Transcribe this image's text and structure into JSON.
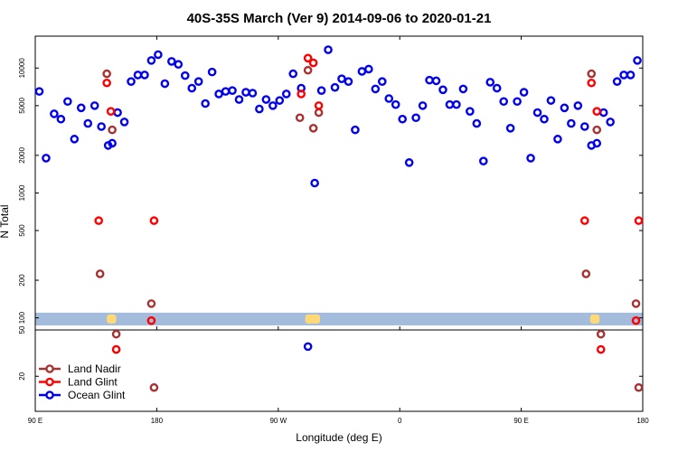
{
  "chart_data": {
    "type": "scatter",
    "title": "40S-35S March (Ver 9)   2014-09-06 to 2020-01-21",
    "xlabel": "Longitude (deg E)",
    "ylabel": "N Total",
    "y_scale": "log",
    "upper_panel_ylim": [
      80,
      18000
    ],
    "lower_panel_ylim": [
      10,
      50
    ],
    "x_ticks": [
      {
        "label": "90 E",
        "value": 90
      },
      {
        "label": "180",
        "value": 180
      },
      {
        "label": "90 W",
        "value": 270
      },
      {
        "label": "0",
        "value": 360
      },
      {
        "label": "90 E",
        "value": 450
      },
      {
        "label": "180",
        "value": 540
      }
    ],
    "upper_y_ticks": [
      {
        "label": "100",
        "value": 100
      },
      {
        "label": "200",
        "value": 200
      },
      {
        "label": "500",
        "value": 500
      },
      {
        "label": "1000",
        "value": 1000
      },
      {
        "label": "2000",
        "value": 2000
      },
      {
        "label": "5000",
        "value": 5000
      },
      {
        "label": "10000",
        "value": 10000
      }
    ],
    "lower_y_ticks": [
      {
        "label": "50",
        "value": 50
      },
      {
        "label": "20",
        "value": 20
      }
    ],
    "band": {
      "y_low": 87,
      "y_high": 110,
      "color": "#a4bcdc"
    },
    "land_markers": {
      "color": "#ffd977",
      "y": 98,
      "ranges": [
        [
          143,
          150
        ],
        [
          290,
          301
        ],
        [
          501,
          508
        ]
      ]
    },
    "legend": {
      "position": "bottom-left",
      "items": [
        {
          "label": "Land Nadir",
          "color": "#a83232"
        },
        {
          "label": "Land Glint",
          "color": "#ff0000"
        },
        {
          "label": "Ocean Glint",
          "color": "#0000ee"
        }
      ]
    },
    "series": [
      {
        "name": "Ocean Glint",
        "color": "#0000ee",
        "points": [
          [
            93,
            6500
          ],
          [
            98,
            1900
          ],
          [
            104,
            4300
          ],
          [
            109,
            3900
          ],
          [
            114,
            5400
          ],
          [
            119,
            2700
          ],
          [
            124,
            4800
          ],
          [
            129,
            3600
          ],
          [
            134,
            5000
          ],
          [
            139,
            3400
          ],
          [
            144,
            2400
          ],
          [
            147,
            2500
          ],
          [
            151,
            4400
          ],
          [
            156,
            3700
          ],
          [
            161,
            7800
          ],
          [
            166,
            8800
          ],
          [
            171,
            8800
          ],
          [
            176,
            11500
          ],
          [
            181,
            12800
          ],
          [
            186,
            7500
          ],
          [
            191,
            11300
          ],
          [
            196,
            10700
          ],
          [
            201,
            8700
          ],
          [
            206,
            6900
          ],
          [
            211,
            7800
          ],
          [
            216,
            5200
          ],
          [
            221,
            9300
          ],
          [
            226,
            6200
          ],
          [
            231,
            6500
          ],
          [
            236,
            6600
          ],
          [
            241,
            5600
          ],
          [
            246,
            6400
          ],
          [
            251,
            6300
          ],
          [
            256,
            4700
          ],
          [
            261,
            5600
          ],
          [
            266,
            5000
          ],
          [
            271,
            5500
          ],
          [
            276,
            6200
          ],
          [
            281,
            9000
          ],
          [
            287,
            6900
          ],
          [
            292,
            36
          ],
          [
            297,
            1200
          ],
          [
            302,
            6600
          ],
          [
            307,
            14000
          ],
          [
            312,
            7000
          ],
          [
            317,
            8200
          ],
          [
            322,
            7800
          ],
          [
            327,
            3200
          ],
          [
            332,
            9400
          ],
          [
            337,
            9800
          ],
          [
            342,
            6800
          ],
          [
            347,
            7800
          ],
          [
            352,
            5700
          ],
          [
            357,
            5100
          ],
          [
            362,
            3900
          ],
          [
            367,
            1750
          ],
          [
            372,
            4000
          ],
          [
            377,
            5000
          ],
          [
            382,
            8000
          ],
          [
            387,
            7900
          ],
          [
            392,
            6700
          ],
          [
            397,
            5100
          ],
          [
            402,
            5100
          ],
          [
            407,
            6800
          ],
          [
            412,
            4500
          ],
          [
            417,
            3600
          ],
          [
            422,
            1800
          ],
          [
            427,
            7700
          ],
          [
            432,
            6900
          ],
          [
            437,
            5400
          ],
          [
            442,
            3300
          ],
          [
            447,
            5400
          ],
          [
            452,
            6400
          ],
          [
            457,
            1900
          ],
          [
            462,
            4400
          ],
          [
            467,
            3900
          ],
          [
            472,
            5500
          ],
          [
            477,
            2700
          ],
          [
            482,
            4800
          ],
          [
            487,
            3600
          ],
          [
            492,
            5000
          ],
          [
            497,
            3400
          ],
          [
            502,
            2400
          ],
          [
            506,
            2500
          ],
          [
            511,
            4400
          ],
          [
            516,
            3700
          ],
          [
            521,
            7800
          ],
          [
            526,
            8800
          ],
          [
            531,
            8800
          ],
          [
            536,
            11500
          ]
        ]
      },
      {
        "name": "Land Nadir",
        "color": "#a83232",
        "points": [
          [
            138,
            225
          ],
          [
            143,
            9000
          ],
          [
            147,
            3200
          ],
          [
            150,
            46
          ],
          [
            176,
            130
          ],
          [
            178,
            16
          ],
          [
            286,
            4000
          ],
          [
            292,
            9600
          ],
          [
            296,
            3300
          ],
          [
            300,
            4400
          ],
          [
            498,
            225
          ],
          [
            502,
            9000
          ],
          [
            506,
            3200
          ],
          [
            509,
            46
          ],
          [
            535,
            130
          ],
          [
            537,
            16
          ]
        ]
      },
      {
        "name": "Land Glint",
        "color": "#ff0000",
        "points": [
          [
            137,
            600
          ],
          [
            143,
            7600
          ],
          [
            146,
            4500
          ],
          [
            150,
            34
          ],
          [
            176,
            95
          ],
          [
            178,
            600
          ],
          [
            287,
            6200
          ],
          [
            292,
            12000
          ],
          [
            296,
            11000
          ],
          [
            300,
            5000
          ],
          [
            497,
            600
          ],
          [
            502,
            7600
          ],
          [
            506,
            4500
          ],
          [
            509,
            34
          ],
          [
            535,
            95
          ],
          [
            537,
            600
          ]
        ]
      }
    ]
  }
}
